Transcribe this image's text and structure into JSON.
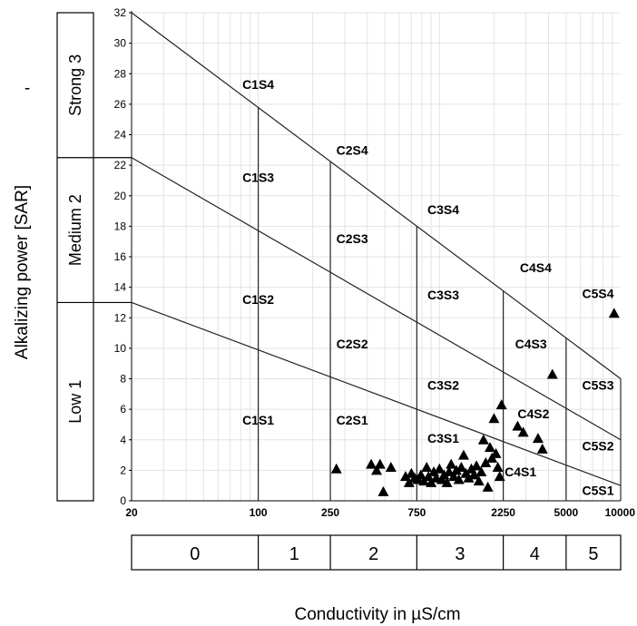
{
  "chart_data": {
    "type": "scatter",
    "title": "",
    "xlabel": "Conductivity in µS/cm",
    "ylabel": "Alkalizing power [SAR]",
    "ylabel_suffix": "-",
    "x_scale": "log",
    "x_ticks": [
      20,
      100,
      250,
      750,
      2250,
      5000,
      10000
    ],
    "x_tick_labels": [
      "20",
      "100",
      "250",
      "750",
      "2250",
      "5000",
      "10000"
    ],
    "xlim": [
      20,
      10000
    ],
    "ylim": [
      0,
      32
    ],
    "y_ticks": [
      0,
      2,
      4,
      6,
      8,
      10,
      12,
      14,
      16,
      18,
      20,
      22,
      24,
      26,
      28,
      30,
      32
    ],
    "grid": true,
    "sodium_bands": [
      {
        "label": "Low 1",
        "range": [
          0,
          13
        ]
      },
      {
        "label": "Medium 2",
        "range": [
          13,
          22.5
        ]
      },
      {
        "label": "Strong 3",
        "range": [
          22.5,
          32
        ]
      }
    ],
    "salinity_classes": [
      "0",
      "1",
      "2",
      "3",
      "4",
      "5"
    ],
    "zones": [
      {
        "label": "C1S4",
        "x": 100,
        "y": 27
      },
      {
        "label": "C1S3",
        "x": 100,
        "y": 20.9
      },
      {
        "label": "C1S2",
        "x": 100,
        "y": 12.9
      },
      {
        "label": "C1S1",
        "x": 100,
        "y": 5
      },
      {
        "label": "C2S4",
        "x": 330,
        "y": 22.7
      },
      {
        "label": "C2S3",
        "x": 330,
        "y": 16.9
      },
      {
        "label": "C2S2",
        "x": 330,
        "y": 10
      },
      {
        "label": "C2S1",
        "x": 330,
        "y": 5
      },
      {
        "label": "C3S4",
        "x": 1050,
        "y": 18.8
      },
      {
        "label": "C3S3",
        "x": 1050,
        "y": 13.2
      },
      {
        "label": "C3S2",
        "x": 1050,
        "y": 7.3
      },
      {
        "label": "C3S1",
        "x": 1050,
        "y": 3.8
      },
      {
        "label": "C4S4",
        "x": 3400,
        "y": 15
      },
      {
        "label": "C4S3",
        "x": 3200,
        "y": 10
      },
      {
        "label": "C4S2",
        "x": 3300,
        "y": 5.4
      },
      {
        "label": "C4S1",
        "x": 2800,
        "y": 1.6
      },
      {
        "label": "C5S4",
        "x": 7500,
        "y": 13.3
      },
      {
        "label": "C5S3",
        "x": 7500,
        "y": 7.3
      },
      {
        "label": "C5S2",
        "x": 7500,
        "y": 3.3
      },
      {
        "label": "C5S1",
        "x": 7500,
        "y": 0.4
      }
    ],
    "boundaries": [
      {
        "name": "S4/S3",
        "from": [
          20,
          32
        ],
        "to": [
          10000,
          8
        ]
      },
      {
        "name": "S3/S2",
        "from": [
          20,
          22.5
        ],
        "to": [
          10000,
          4
        ]
      },
      {
        "name": "S2/S1",
        "from": [
          20,
          13
        ],
        "to": [
          10000,
          1
        ]
      }
    ],
    "series": [
      {
        "marker": "triangle",
        "color": "#000000",
        "points": [
          [
            270,
            2.1
          ],
          [
            420,
            2.4
          ],
          [
            450,
            2.0
          ],
          [
            470,
            2.4
          ],
          [
            490,
            0.6
          ],
          [
            540,
            2.2
          ],
          [
            650,
            1.6
          ],
          [
            680,
            1.2
          ],
          [
            700,
            1.8
          ],
          [
            730,
            1.5
          ],
          [
            760,
            1.4
          ],
          [
            790,
            1.7
          ],
          [
            820,
            1.3
          ],
          [
            850,
            2.2
          ],
          [
            870,
            1.6
          ],
          [
            900,
            1.2
          ],
          [
            930,
            1.9
          ],
          [
            960,
            1.5
          ],
          [
            1000,
            2.1
          ],
          [
            1030,
            1.4
          ],
          [
            1060,
            1.7
          ],
          [
            1100,
            1.2
          ],
          [
            1130,
            1.9
          ],
          [
            1160,
            2.4
          ],
          [
            1200,
            1.6
          ],
          [
            1240,
            2.0
          ],
          [
            1280,
            1.4
          ],
          [
            1320,
            2.2
          ],
          [
            1360,
            3.0
          ],
          [
            1400,
            1.8
          ],
          [
            1450,
            1.5
          ],
          [
            1500,
            2.1
          ],
          [
            1550,
            1.7
          ],
          [
            1600,
            2.3
          ],
          [
            1650,
            1.3
          ],
          [
            1700,
            1.9
          ],
          [
            1750,
            4.0
          ],
          [
            1800,
            2.5
          ],
          [
            1850,
            0.9
          ],
          [
            1900,
            3.5
          ],
          [
            1950,
            2.8
          ],
          [
            2000,
            5.4
          ],
          [
            2050,
            3.1
          ],
          [
            2100,
            2.2
          ],
          [
            2150,
            1.6
          ],
          [
            2200,
            6.3
          ],
          [
            2700,
            4.9
          ],
          [
            2900,
            4.5
          ],
          [
            3500,
            4.1
          ],
          [
            3700,
            3.4
          ],
          [
            4200,
            8.3
          ],
          [
            9200,
            12.3
          ]
        ]
      }
    ]
  }
}
